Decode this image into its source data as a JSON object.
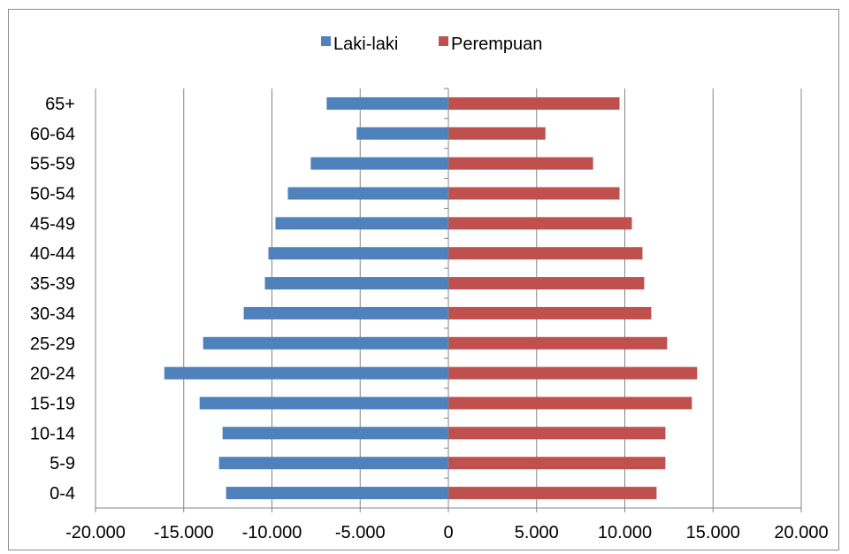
{
  "chart_data": {
    "type": "bar",
    "orientation": "horizontal",
    "categories": [
      "0-4",
      "5-9",
      "10-14",
      "15-19",
      "20-24",
      "25-29",
      "30-34",
      "35-39",
      "40-44",
      "45-49",
      "50-54",
      "55-59",
      "60-64",
      "65+"
    ],
    "series": [
      {
        "name": "Laki-laki",
        "color": "#4f81bd",
        "values": [
          -12600,
          -13000,
          -12800,
          -14100,
          -16100,
          -13900,
          -11600,
          -10400,
          -10200,
          -9800,
          -9100,
          -7800,
          -5200,
          -6900
        ]
      },
      {
        "name": "Perempuan",
        "color": "#c0504d",
        "values": [
          11800,
          12300,
          12300,
          13800,
          14100,
          12400,
          11500,
          11100,
          11000,
          10400,
          9700,
          8200,
          5500,
          9700
        ]
      }
    ],
    "xlim": [
      -20000,
      20000
    ],
    "xticks": [
      -20000,
      -15000,
      -10000,
      -5000,
      0,
      5000,
      10000,
      15000,
      20000
    ],
    "xtick_labels": [
      "-20.000",
      "-15.000",
      "-10.000",
      "-5.000",
      "0",
      "5.000",
      "10.000",
      "15.000",
      "20.000"
    ],
    "grid": "vertical major gridlines",
    "legend": "top-center",
    "title": "",
    "xlabel": "",
    "ylabel": ""
  }
}
